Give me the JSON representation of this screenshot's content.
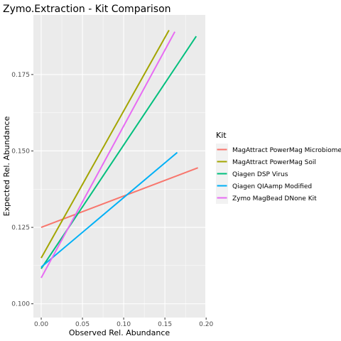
{
  "chart_data": {
    "type": "line",
    "title": "Zymo.Extraction - Kit Comparison",
    "xlabel": "Observed Rel. Abundance",
    "ylabel": "Expected Rel. Abundance",
    "xlim": [
      -0.0095,
      0.199
    ],
    "ylim": [
      0.0955,
      0.1945
    ],
    "x_ticks": [
      0.0,
      0.05,
      0.1,
      0.15,
      0.2
    ],
    "x_tick_labels": [
      "0.00",
      "0.05",
      "0.10",
      "0.15",
      "0.20"
    ],
    "y_ticks": [
      0.1,
      0.125,
      0.15,
      0.175
    ],
    "y_tick_labels": [
      "0.100",
      "0.125",
      "0.150",
      "0.175"
    ],
    "grid": true,
    "legend_title": "Kit",
    "legend_position": "right",
    "series": [
      {
        "name": "MagAttract PowerMag Microbiome",
        "color": "#F8766D",
        "x": [
          0.0,
          0.19
        ],
        "y": [
          0.125,
          0.1445
        ]
      },
      {
        "name": "MagAttract PowerMag Soil",
        "color": "#A3A500",
        "x": [
          0.0,
          0.155
        ],
        "y": [
          0.115,
          0.1895
        ]
      },
      {
        "name": "Qiagen DSP Virus",
        "color": "#00BF7D",
        "x": [
          0.0,
          0.188
        ],
        "y": [
          0.1115,
          0.1875
        ]
      },
      {
        "name": "Qiagen QIAamp  Modified",
        "color": "#00B0F6",
        "x": [
          0.0,
          0.165
        ],
        "y": [
          0.112,
          0.1495
        ]
      },
      {
        "name": "Zymo MagBead DNone Kit",
        "color": "#E76BF3",
        "x": [
          0.0,
          0.162
        ],
        "y": [
          0.1085,
          0.189
        ]
      }
    ]
  }
}
